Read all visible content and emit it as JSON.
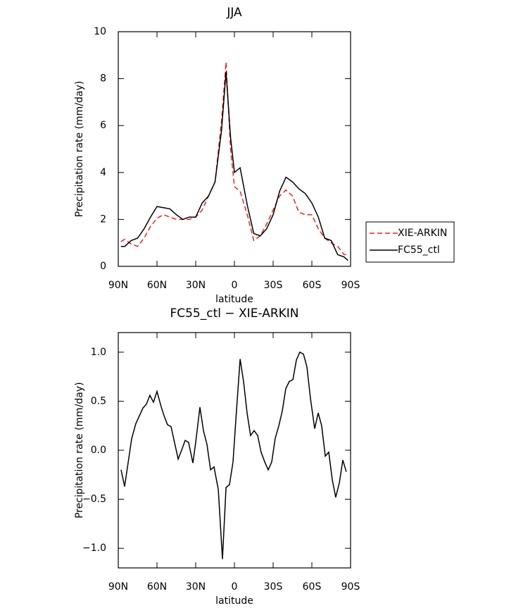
{
  "chart_data": [
    {
      "type": "line",
      "title": "JJA",
      "xlabel": "latitude",
      "ylabel": "Precipitation rate (mm/day)",
      "x": [
        88,
        85,
        80,
        75,
        70,
        65,
        60,
        55,
        50,
        45,
        40,
        35,
        30,
        25,
        20,
        15,
        10,
        6.5,
        3,
        0,
        -4.4,
        -10,
        -15,
        -20,
        -25,
        -30,
        -35,
        -40,
        -45,
        -50,
        -55,
        -60,
        -65,
        -70,
        -75,
        -80,
        -85,
        -88
      ],
      "series": [
        {
          "name": "XIE-ARKIN",
          "color": "#e8231f",
          "dashed": true,
          "values": [
            1.05,
            1.15,
            0.95,
            0.85,
            1.2,
            1.7,
            2.05,
            2.2,
            2.1,
            2.0,
            2.0,
            2.0,
            2.1,
            2.4,
            3.0,
            3.6,
            6.2,
            8.7,
            5.0,
            3.4,
            3.2,
            2.2,
            1.1,
            1.3,
            1.8,
            2.4,
            3.0,
            3.25,
            3.0,
            2.3,
            2.2,
            2.2,
            1.6,
            1.2,
            1.0,
            0.85,
            0.5,
            0.5
          ]
        },
        {
          "name": "FC55_ctl",
          "color": "#000000",
          "dashed": false,
          "values": [
            0.85,
            0.85,
            1.1,
            1.2,
            1.6,
            2.1,
            2.55,
            2.5,
            2.45,
            2.2,
            2.0,
            2.1,
            2.1,
            2.7,
            3.0,
            3.6,
            5.8,
            8.3,
            5.5,
            4.0,
            4.2,
            2.6,
            1.4,
            1.3,
            1.6,
            2.2,
            3.2,
            3.8,
            3.6,
            3.3,
            3.1,
            2.7,
            2.1,
            1.2,
            1.1,
            0.5,
            0.4,
            0.25
          ]
        }
      ],
      "xlim": [
        90,
        -90
      ],
      "xticks": [
        {
          "value": 90,
          "label": "90N"
        },
        {
          "value": 60,
          "label": "60N"
        },
        {
          "value": 30,
          "label": "30N"
        },
        0,
        {
          "value": -30,
          "label": "30S"
        },
        {
          "value": -60,
          "label": "60S"
        },
        {
          "value": -90,
          "label": "90S"
        }
      ],
      "ylim": [
        0,
        10
      ],
      "yticks": [
        0,
        2,
        4,
        6,
        8,
        10
      ],
      "legend": "right"
    },
    {
      "type": "line",
      "title": "FC55_ctl − XIE-ARKIN",
      "xlabel": "latitude",
      "ylabel": "Precipitation rate (mm/day)",
      "x": [
        87.8,
        85.1,
        79.6,
        76.4,
        70.9,
        68.2,
        65.5,
        62.7,
        60.0,
        56.7,
        54.5,
        51.8,
        49.1,
        43.6,
        40.9,
        38.2,
        35.5,
        32.2,
        30.0,
        26.7,
        24.0,
        21.3,
        18.5,
        15.8,
        12.5,
        9.3,
        6.5,
        3.8,
        1.1,
        -1.6,
        -4.4,
        -7.1,
        -9.8,
        -12.5,
        -15.3,
        -18.0,
        -20.7,
        -23.5,
        -26.2,
        -28.9,
        -31.6,
        -34.4,
        -37.1,
        -39.8,
        -42.5,
        -45.3,
        -48.0,
        -50.7,
        -53.5,
        -56.2,
        -58.9,
        -62.2,
        -64.9,
        -67.6,
        -70.4,
        -73.1,
        -75.8,
        -78.5,
        -81.3,
        -84.0,
        -86.7
      ],
      "series": [
        {
          "color": "#000000",
          "dashed": false,
          "values": [
            -0.2,
            -0.37,
            0.12,
            0.27,
            0.43,
            0.47,
            0.56,
            0.49,
            0.6,
            0.44,
            0.35,
            0.26,
            0.24,
            -0.09,
            0.0,
            0.1,
            0.08,
            -0.13,
            0.08,
            0.44,
            0.2,
            0.06,
            -0.2,
            -0.17,
            -0.4,
            -1.11,
            -0.38,
            -0.35,
            -0.12,
            0.4,
            0.93,
            0.7,
            0.38,
            0.15,
            0.2,
            0.15,
            -0.02,
            -0.12,
            -0.2,
            -0.12,
            0.12,
            0.25,
            0.4,
            0.63,
            0.7,
            0.72,
            0.92,
            1.0,
            0.98,
            0.85,
            0.53,
            0.22,
            0.38,
            0.25,
            -0.06,
            -0.02,
            -0.3,
            -0.48,
            -0.33,
            -0.1,
            -0.22
          ]
        }
      ],
      "xlim": [
        90,
        -90
      ],
      "xticks": [
        {
          "value": 90,
          "label": "90N"
        },
        {
          "value": 60,
          "label": "60N"
        },
        {
          "value": 30,
          "label": "30N"
        },
        0,
        {
          "value": -30,
          "label": "30S"
        },
        {
          "value": -60,
          "label": "60S"
        },
        {
          "value": -90,
          "label": "90S"
        }
      ],
      "ylim": [
        -1.2,
        1.2
      ],
      "yticks": [
        {
          "value": -1.0,
          "label": "−1.0"
        },
        {
          "value": -0.5,
          "label": "−0.5"
        },
        {
          "value": 0.0,
          "label": "0.0"
        },
        0.5,
        {
          "value": 1.0,
          "label": "1.0"
        }
      ]
    }
  ]
}
